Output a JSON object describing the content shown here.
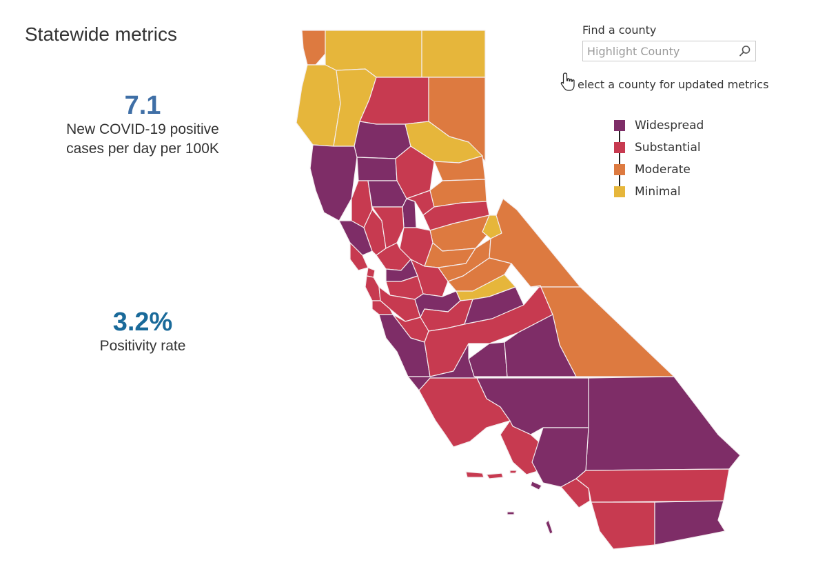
{
  "panel": {
    "title": "Statewide metrics",
    "metrics": [
      {
        "value": "7.1",
        "label_lines": [
          "New COVID-19 positive",
          "cases per day per 100K"
        ]
      },
      {
        "value": "3.2%",
        "label_lines": [
          "Positivity rate"
        ]
      }
    ]
  },
  "search": {
    "label": "Find a county",
    "placeholder": "Highlight County",
    "value": "",
    "icon": "search-icon"
  },
  "hint": {
    "text": "elect a county for updated metrics",
    "icon": "hand-pointer-icon"
  },
  "legend": {
    "items": [
      {
        "label": "Widespread",
        "color": "#7e2d67"
      },
      {
        "label": "Substantial",
        "color": "#c73a50"
      },
      {
        "label": "Moderate",
        "color": "#dd7a40"
      },
      {
        "label": "Minimal",
        "color": "#e6b63b"
      }
    ]
  },
  "map": {
    "region": "California",
    "colors": {
      "widespread": "#7e2d67",
      "substantial": "#c73a50",
      "moderate": "#dd7a40",
      "minimal": "#e6b63b",
      "border": "#f4eef0"
    }
  }
}
